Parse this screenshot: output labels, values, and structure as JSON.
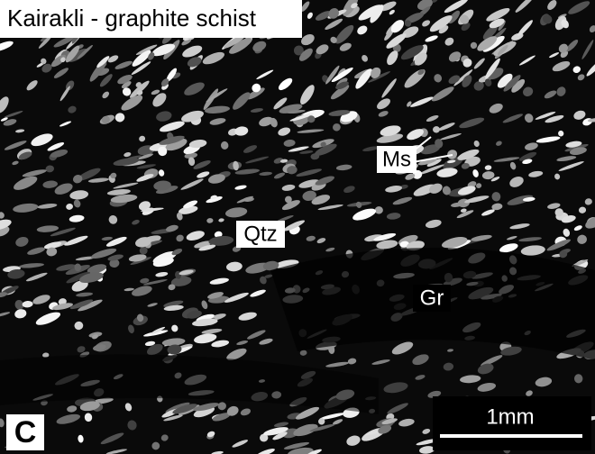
{
  "header": {
    "title": "Kairakli - graphite schist"
  },
  "labels": {
    "muscovite": "Ms",
    "quartz": "Qtz",
    "graphite": "Gr"
  },
  "scale_bar": {
    "label": "1mm"
  },
  "panel": {
    "letter": "C"
  }
}
